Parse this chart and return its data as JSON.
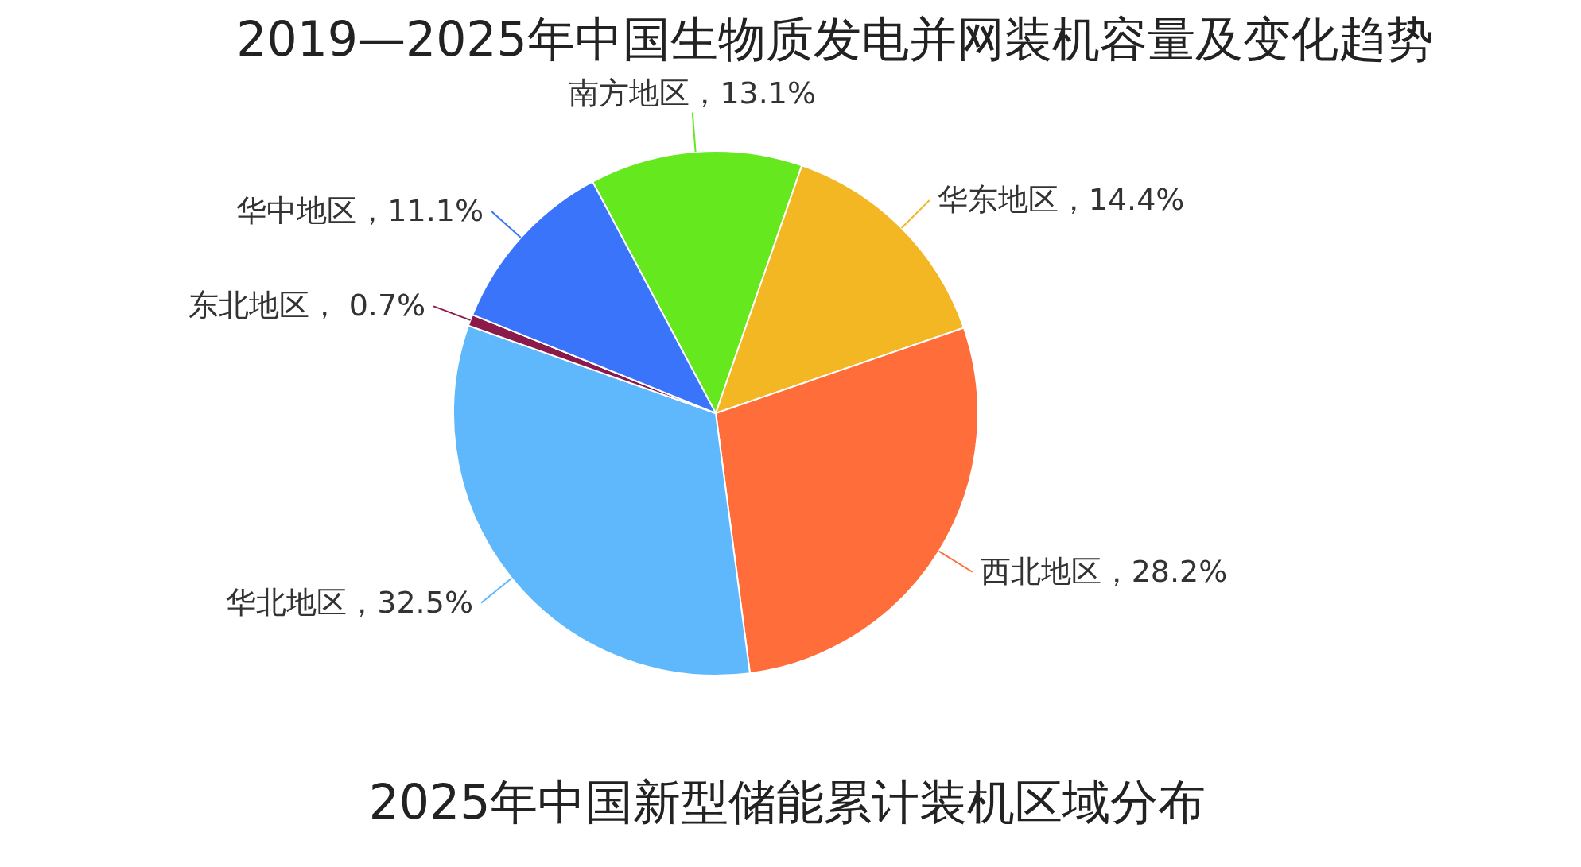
{
  "chart_data": {
    "type": "pie",
    "title": "2019—2025年中国生物质发电并网装机容量及变化趋势",
    "subtitle": "2025年中国新型储能累计装机区域分布",
    "categories": [
      "南方地区",
      "华东地区",
      "西北地区",
      "华北地区",
      "东北地区",
      "华中地区"
    ],
    "values": [
      13.1,
      14.4,
      28.2,
      32.5,
      0.7,
      11.1
    ],
    "value_labels": [
      "，13.1%",
      "，14.4%",
      "，28.2%",
      "，32.5%",
      "， 0.7%",
      "，11.1%"
    ],
    "colors": [
      "#66e81e",
      "#f2b722",
      "#ff6d3a",
      "#5fb8fb",
      "#8b1a4a",
      "#3a74fb"
    ]
  }
}
